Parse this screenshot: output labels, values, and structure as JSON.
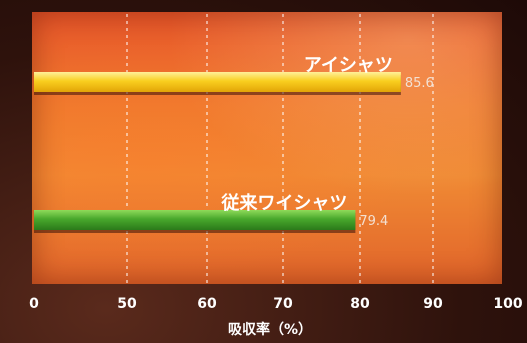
{
  "chart_data": {
    "type": "bar",
    "orientation": "horizontal",
    "categories": [
      "アイシャツ",
      "従来ワイシャツ"
    ],
    "values": [
      85.6,
      79.4
    ],
    "value_labels": [
      "85.6",
      "79.4"
    ],
    "xlabel": "吸収率（%）",
    "xlim": [
      0,
      100
    ],
    "xticks": [
      0,
      50,
      60,
      70,
      80,
      90,
      100
    ],
    "grid": "vertical dashed",
    "bar_colors": [
      "#f6c21a",
      "#3f9a2a"
    ]
  }
}
